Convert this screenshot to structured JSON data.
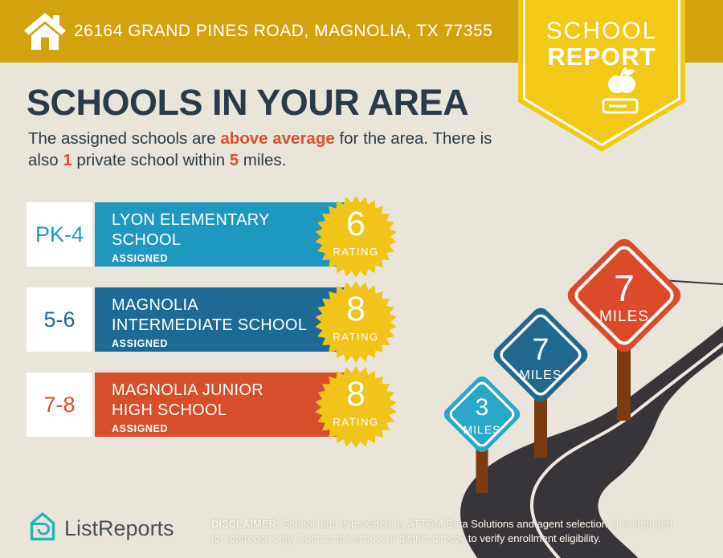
{
  "header": {
    "address": "26164 GRAND PINES ROAD, MAGNOLIA, TX 77355"
  },
  "ribbon": {
    "line1": "SCHOOL",
    "line2": "REPORT"
  },
  "main": {
    "title": "SCHOOLS IN YOUR AREA",
    "subtitle": {
      "lines": [
        [
          {
            "t": "The assigned schools are ",
            "accent": false
          },
          {
            "t": "above average",
            "accent": true
          },
          {
            "t": " for the area. There is",
            "accent": false
          }
        ],
        [
          {
            "t": "also ",
            "accent": false
          },
          {
            "t": "1",
            "accent": true
          },
          {
            "t": " private school within ",
            "accent": false
          },
          {
            "t": "5",
            "accent": true
          },
          {
            "t": " miles.",
            "accent": false
          }
        ]
      ]
    }
  },
  "schools": {
    "rows": [
      {
        "grades": "PK-4",
        "name": "LYON ELEMENTARY\nSCHOOL",
        "tag": "ASSIGNED",
        "rating": "6",
        "rating_label": "RATING",
        "color": "#1F98BF"
      },
      {
        "grades": "5-6",
        "name": "MAGNOLIA\nINTERMEDIATE SCHOOL",
        "tag": "ASSIGNED",
        "rating": "8",
        "rating_label": "RATING",
        "color": "#1D6A94"
      },
      {
        "grades": "7-8",
        "name": "MAGNOLIA JUNIOR\nHIGH SCHOOL",
        "tag": "ASSIGNED",
        "rating": "8",
        "rating_label": "RATING",
        "color": "#D84E2B"
      }
    ]
  },
  "illustration": {
    "signs": [
      {
        "distance": "3",
        "unit": "MILES",
        "color": "#2BA8C9"
      },
      {
        "distance": "7",
        "unit": "MILES",
        "color": "#20688F"
      },
      {
        "distance": "7",
        "unit": "MILES",
        "color": "#DC4A2B"
      }
    ]
  },
  "footer": {
    "brand": "ListReports",
    "disclaimer_label": "DISCLAIMER:",
    "disclaimer_text": " School data is provided by ATTOM Data Solutions and agent selection. It is intended\nfor reference only. Contact the school or district directly to verify enrollment eligibility."
  },
  "colors": {
    "header_gold": "#D3A30F",
    "ribbon_yellow": "#F3C917",
    "star_yellow": "#F0C419",
    "background": "#EAE5DA",
    "navy": "#2B3A49",
    "accent_orange": "#E04E2D",
    "road": "#37343A",
    "post_brown": "#7A3B10",
    "brand_teal": "#29B2B6"
  }
}
